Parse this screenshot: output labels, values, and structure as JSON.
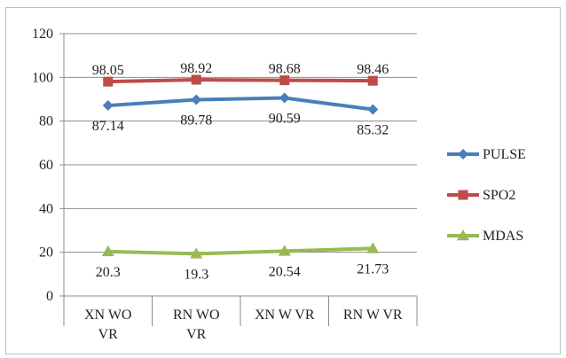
{
  "chart_data": {
    "type": "line",
    "categories": [
      [
        "XN WO",
        "VR"
      ],
      [
        "RN WO",
        "VR"
      ],
      [
        "XN W VR"
      ],
      [
        "RN W VR"
      ]
    ],
    "ylim": [
      0,
      120
    ],
    "yticks": [
      0,
      20,
      40,
      60,
      80,
      100,
      120
    ],
    "grid": "horizontal",
    "legend_position": "right",
    "series": [
      {
        "name": "PULSE",
        "values": [
          87.14,
          89.78,
          90.59,
          85.32
        ],
        "color": "#4a7ebb",
        "marker": "diamond",
        "labels": [
          "87.14",
          "89.78",
          "90.59",
          "85.32"
        ],
        "label_pos": "below"
      },
      {
        "name": "SPO2",
        "values": [
          98.05,
          98.92,
          98.68,
          98.46
        ],
        "color": "#be4b48",
        "marker": "square",
        "labels": [
          "98.05",
          "98.92",
          "98.68",
          "98.46"
        ],
        "label_pos": "above"
      },
      {
        "name": "MDAS",
        "values": [
          20.3,
          19.3,
          20.54,
          21.73
        ],
        "color": "#98b954",
        "marker": "triangle",
        "labels": [
          "20.3",
          "19.3",
          "20.54",
          "21.73"
        ],
        "label_pos": "below"
      }
    ]
  }
}
